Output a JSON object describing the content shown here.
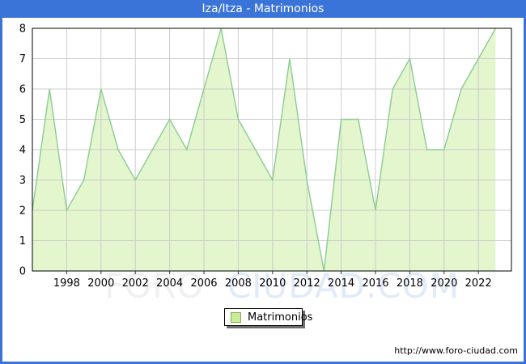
{
  "window": {
    "title": "Iza/Itza - Matrimonios"
  },
  "chart_data": {
    "type": "area",
    "title": "Iza/Itza - Matrimonios",
    "x": [
      1996,
      1997,
      1998,
      1999,
      2000,
      2001,
      2002,
      2003,
      2004,
      2005,
      2006,
      2007,
      2008,
      2009,
      2010,
      2011,
      2012,
      2013,
      2014,
      2015,
      2016,
      2017,
      2018,
      2019,
      2020,
      2021,
      2022,
      2023
    ],
    "series": [
      {
        "name": "Matrimonios",
        "values": [
          2,
          6,
          2,
          3,
          6,
          4,
          3,
          4,
          5,
          4,
          6,
          8,
          5,
          4,
          3,
          7,
          3,
          0,
          5,
          5,
          2,
          6,
          7,
          4,
          4,
          6,
          7,
          8
        ]
      }
    ],
    "ylim": [
      0,
      8
    ],
    "yticks": [
      0,
      1,
      2,
      3,
      4,
      5,
      6,
      7,
      8
    ],
    "xtick_labels": [
      "1998",
      "2000",
      "2002",
      "2004",
      "2006",
      "2008",
      "2010",
      "2012",
      "2014",
      "2016",
      "2018",
      "2020",
      "2022"
    ],
    "grid": true,
    "legend_position": "bottom-center"
  },
  "legend": {
    "label": "Matrimonios"
  },
  "watermark": {
    "part1": "FORO",
    "part2": "CIUDAD.COM"
  },
  "footer": {
    "url": "http://www.foro-ciudad.com"
  },
  "colors": {
    "titlebar": "#3B74D9",
    "title_text": "#FFFFFF",
    "area_fill": "#E3F6CE",
    "line": "#8CCB93",
    "grid": "#CCCCCC",
    "axis": "#000000",
    "tick": "#333333",
    "legend_swatch": "#C9EE97",
    "legend_swatch_border": "#85A958",
    "watermark_gray": "#F0F0F0",
    "watermark_blue": "#E2EAF8"
  }
}
